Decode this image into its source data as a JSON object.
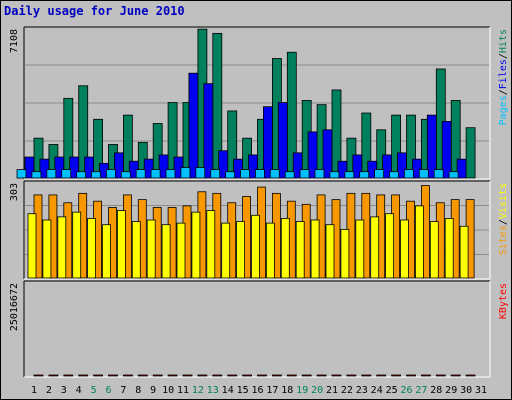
{
  "title": "Daily usage for June 2010",
  "colors": {
    "hits": "#00805c",
    "files": "#0000f0",
    "pages": "#00c0ff",
    "visits": "#f89800",
    "sites": "#ffff00",
    "kbytes": "#ff0000",
    "weekend_day": "#00805c",
    "weekday": "#000000"
  },
  "chart_data": [
    {
      "type": "bar",
      "panel": "requests",
      "ymax_label": "7108",
      "ylim": [
        0,
        7108
      ],
      "grid": true,
      "legend_text": [
        "Pages",
        "/",
        "Files",
        "/",
        "Hits"
      ],
      "categories": [
        "1",
        "2",
        "3",
        "4",
        "5",
        "6",
        "7",
        "8",
        "9",
        "10",
        "11",
        "12",
        "13",
        "14",
        "15",
        "16",
        "17",
        "18",
        "19",
        "20",
        "21",
        "22",
        "23",
        "24",
        "25",
        "26",
        "27",
        "28",
        "29",
        "30",
        "31"
      ],
      "series": [
        {
          "name": "Hits",
          "values": [
            1900,
            1600,
            3800,
            4400,
            2800,
            1600,
            3000,
            1700,
            2600,
            3600,
            3600,
            7100,
            6900,
            3200,
            1900,
            2800,
            5700,
            6000,
            3700,
            3500,
            4200,
            1900,
            3100,
            2300,
            3000,
            3000,
            2800,
            5200,
            3700,
            2400,
            0
          ]
        },
        {
          "name": "Files",
          "values": [
            1000,
            900,
            1000,
            1000,
            1000,
            700,
            1200,
            800,
            900,
            1100,
            1000,
            5000,
            4500,
            1300,
            900,
            1100,
            3400,
            3600,
            1200,
            2200,
            2300,
            800,
            1100,
            800,
            1100,
            1200,
            900,
            3000,
            2700,
            900,
            0
          ]
        },
        {
          "name": "Pages",
          "values": [
            400,
            300,
            400,
            400,
            300,
            300,
            400,
            300,
            400,
            400,
            400,
            500,
            500,
            400,
            300,
            400,
            400,
            400,
            300,
            400,
            400,
            300,
            300,
            300,
            400,
            300,
            400,
            400,
            400,
            300,
            0
          ]
        }
      ]
    },
    {
      "type": "bar",
      "panel": "visits",
      "ymax_label": "303",
      "ylim": [
        0,
        303
      ],
      "grid": true,
      "legend_text": [
        "Sites",
        "/",
        "Visits"
      ],
      "categories": [
        "1",
        "2",
        "3",
        "4",
        "5",
        "6",
        "7",
        "8",
        "9",
        "10",
        "11",
        "12",
        "13",
        "14",
        "15",
        "16",
        "17",
        "18",
        "19",
        "20",
        "21",
        "22",
        "23",
        "24",
        "25",
        "26",
        "27",
        "28",
        "29",
        "30",
        "31"
      ],
      "series": [
        {
          "name": "Visits",
          "values": [
            265,
            265,
            240,
            270,
            245,
            225,
            265,
            250,
            225,
            225,
            230,
            275,
            270,
            240,
            260,
            290,
            270,
            245,
            235,
            265,
            250,
            270,
            270,
            265,
            265,
            245,
            295,
            240,
            250,
            250,
            0
          ]
        },
        {
          "name": "Sites",
          "values": [
            205,
            185,
            195,
            210,
            190,
            170,
            215,
            180,
            185,
            170,
            175,
            210,
            215,
            175,
            180,
            200,
            175,
            190,
            180,
            185,
            170,
            155,
            185,
            195,
            205,
            185,
            230,
            180,
            190,
            165,
            0
          ]
        }
      ]
    },
    {
      "type": "bar",
      "panel": "kbytes",
      "ymax_label": "25016672",
      "ylim": [
        0,
        25016672
      ],
      "grid": false,
      "legend_text": [
        "KBytes"
      ],
      "categories": [
        "1",
        "2",
        "3",
        "4",
        "5",
        "6",
        "7",
        "8",
        "9",
        "10",
        "11",
        "12",
        "13",
        "14",
        "15",
        "16",
        "17",
        "18",
        "19",
        "20",
        "21",
        "22",
        "23",
        "24",
        "25",
        "26",
        "27",
        "28",
        "29",
        "30",
        "31"
      ],
      "series": [
        {
          "name": "KBytes",
          "values": [
            6700,
            5900,
            10800,
            6300,
            4800,
            6800,
            7200,
            5500,
            1500,
            12800,
            3800,
            25000,
            2800,
            11500,
            4800,
            3200,
            17800,
            2300,
            8800,
            12800,
            8000,
            13100,
            6100,
            2800,
            8000,
            5600,
            6300,
            15800,
            14700,
            2800,
            0
          ]
        }
      ]
    }
  ],
  "x_axis": {
    "labels": [
      "1",
      "2",
      "3",
      "4",
      "5",
      "6",
      "7",
      "8",
      "9",
      "10",
      "11",
      "12",
      "13",
      "14",
      "15",
      "16",
      "17",
      "18",
      "19",
      "20",
      "21",
      "22",
      "23",
      "24",
      "25",
      "26",
      "27",
      "28",
      "29",
      "30",
      "31"
    ],
    "weekend_days": [
      "5",
      "6",
      "12",
      "13",
      "19",
      "20",
      "26",
      "27"
    ]
  }
}
